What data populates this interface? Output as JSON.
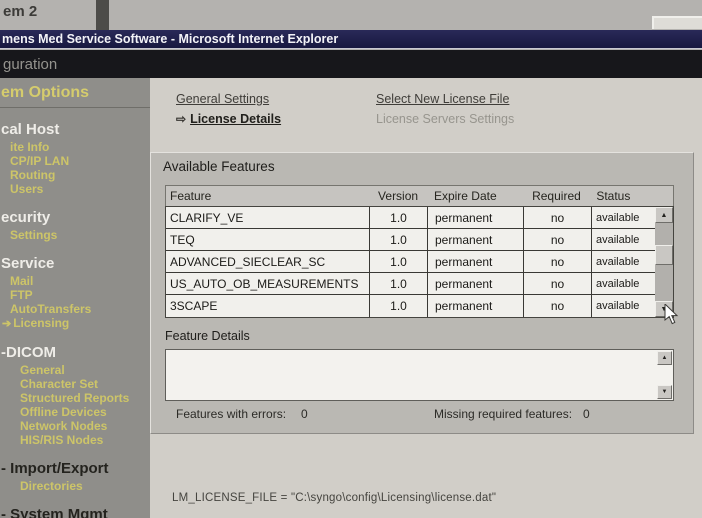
{
  "desktop": {
    "background_title": "em 2"
  },
  "window": {
    "title": "mens Med Service Software - Microsoft Internet Explorer",
    "page_header": "guration"
  },
  "icons": {
    "active_nav_arrow": "⇨",
    "selected_item_arrow": "➔",
    "scroll_up": "▲",
    "scroll_down": "▼"
  },
  "sidebar": {
    "title": "em Options",
    "items": [
      {
        "label": "cal Host",
        "type": "hl"
      },
      {
        "label": "ite Info",
        "type": "ln"
      },
      {
        "label": "CP/IP LAN",
        "type": "ln"
      },
      {
        "label": "Routing",
        "type": "ln"
      },
      {
        "label": "Users",
        "type": "ln"
      },
      {
        "label": "ecurity",
        "type": "hl"
      },
      {
        "label": "Settings",
        "type": "ln"
      },
      {
        "label": "Service",
        "type": "hl"
      },
      {
        "label": "Mail",
        "type": "ln"
      },
      {
        "label": "FTP",
        "type": "ln"
      },
      {
        "label": "AutoTransfers",
        "type": "ln"
      },
      {
        "label": "Licensing",
        "type": "ln",
        "selected": true
      },
      {
        "label": "-DICOM",
        "type": "hl"
      },
      {
        "label": "General",
        "type": "ln2"
      },
      {
        "label": "Character Set",
        "type": "ln2"
      },
      {
        "label": "Structured Reports",
        "type": "ln2"
      },
      {
        "label": "Offline Devices",
        "type": "ln2"
      },
      {
        "label": "Network Nodes",
        "type": "ln2"
      },
      {
        "label": "HIS/RIS Nodes",
        "type": "ln2"
      },
      {
        "label": "- Import/Export",
        "type": "hd"
      },
      {
        "label": "Directories",
        "type": "ln2"
      },
      {
        "label": "- System Mgmt",
        "type": "hd"
      }
    ]
  },
  "license_nav": {
    "items": [
      {
        "label": "General Settings",
        "style": "link"
      },
      {
        "label": "Select New License File",
        "style": "link"
      },
      {
        "label": "License Details",
        "style": "active"
      },
      {
        "label": "License Servers Settings",
        "style": "disabled"
      }
    ]
  },
  "panel": {
    "title": "Available Features",
    "details_label": "Feature Details",
    "errors_label": "Features with errors:",
    "errors_value": "0",
    "missing_label": "Missing required features:",
    "missing_value": "0"
  },
  "table": {
    "columns": [
      "Feature",
      "Version",
      "Expire Date",
      "Required",
      "Status"
    ],
    "rows": [
      [
        "CLARIFY_VE",
        "1.0",
        "permanent",
        "no",
        "available"
      ],
      [
        "TEQ",
        "1.0",
        "permanent",
        "no",
        "available"
      ],
      [
        "ADVANCED_SIECLEAR_SC",
        "1.0",
        "permanent",
        "no",
        "available"
      ],
      [
        "US_AUTO_OB_MEASUREMENTS",
        "1.0",
        "permanent",
        "no",
        "available"
      ],
      [
        "3SCAPE",
        "1.0",
        "permanent",
        "no",
        "available"
      ]
    ]
  },
  "status": {
    "license_file": "LM_LICENSE_FILE = \"C:\\syngo\\config\\Licensing\\license.dat\""
  },
  "colors": {
    "titlebar": "#20204c",
    "sidebar_bg": "#8f8e8a",
    "sidebar_link": "#cdc568",
    "content_bg": "#d1cec8",
    "panel_bg": "#bab8b3",
    "row_bg": "#f1f0ec"
  }
}
